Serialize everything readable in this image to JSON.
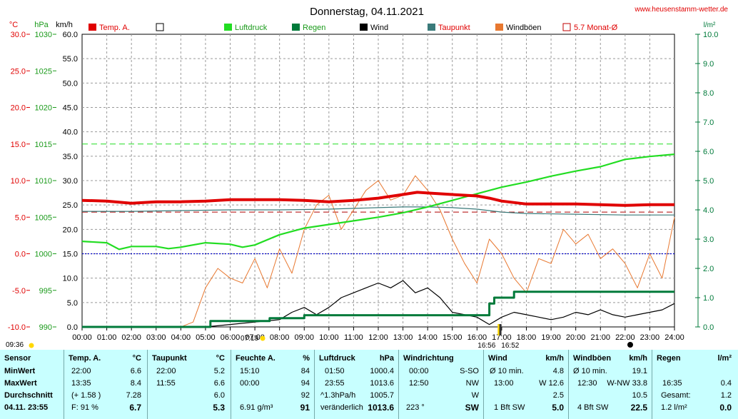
{
  "header": {
    "date_title": "Donnerstag, 04.11.2021",
    "website": "www.heusenstamm-wetter.de"
  },
  "axes": {
    "temp_unit": "°C",
    "pressure_unit": "hPa",
    "wind_unit": "km/h",
    "rain_unit": "l/m²",
    "temp_ticks": [
      "30.0",
      "25.0",
      "20.0",
      "15.0",
      "10.0",
      "5.0",
      "0.0",
      "-5.0",
      "-10.0"
    ],
    "pressure_ticks": [
      "1030",
      "1025",
      "1020",
      "1015",
      "1010",
      "1005",
      "1000",
      "995",
      "990"
    ],
    "wind_ticks": [
      "60.0",
      "55.0",
      "50.0",
      "45.0",
      "40.0",
      "35.0",
      "30.0",
      "25.0",
      "20.0",
      "15.0",
      "10.0",
      "5.0",
      "0.0"
    ],
    "rain_ticks": [
      "10.0",
      "9.0",
      "8.0",
      "7.0",
      "6.0",
      "5.0",
      "4.0",
      "3.0",
      "2.0",
      "1.0",
      "0.0"
    ],
    "time_ticks": [
      "00:00",
      "01:00",
      "02:00",
      "03:00",
      "04:00",
      "05:00",
      "06:00",
      "07:00",
      "08:00",
      "09:00",
      "10:00",
      "11:00",
      "12:00",
      "13:00",
      "14:00",
      "15:00",
      "16:00",
      "17:00",
      "18:00",
      "19:00",
      "20:00",
      "21:00",
      "22:00",
      "23:00",
      "24:00"
    ]
  },
  "legend": [
    {
      "label": "Temp. A.",
      "color": "#e00000",
      "style": "filled"
    },
    {
      "label": "",
      "color": "#000000",
      "style": "outline"
    },
    {
      "label": "Luftdruck",
      "color": "#22dd22",
      "style": "filled"
    },
    {
      "label": "Regen",
      "color": "#007a3a",
      "style": "filled"
    },
    {
      "label": "Wind",
      "color": "#000000",
      "style": "filled"
    },
    {
      "label": "Taupunkt",
      "color": "#3a7a7a",
      "style": "filled"
    },
    {
      "label": "Windböen",
      "color": "#e87830",
      "style": "filled"
    },
    {
      "label": "5.7 Monat-Ø",
      "color": "#c00000",
      "style": "outline"
    }
  ],
  "markers": {
    "sunrise": "07:19",
    "sunset": "16:52",
    "moonrise": "09:36",
    "moonset": "16:56"
  },
  "colors": {
    "temp": "#e00000",
    "pressure": "#22dd22",
    "rain": "#007a3a",
    "wind": "#000000",
    "dewpoint": "#3a7a7a",
    "gust": "#e87830",
    "month_avg": "#b00000",
    "zero_line": "#0000cc",
    "stats_bg": "#c8ffff"
  },
  "chart_data": {
    "type": "line",
    "title": "Donnerstag, 04.11.2021",
    "x_range": [
      "00:00",
      "24:00"
    ],
    "ylim_temp": [
      -10,
      30
    ],
    "ylim_pressure": [
      990,
      1030
    ],
    "ylim_wind": [
      0,
      60
    ],
    "ylim_rain": [
      0,
      10
    ],
    "month_avg_temp": 5.7,
    "series": [
      {
        "name": "Temp. A.",
        "axis": "temp",
        "x": [
          0,
          1,
          2,
          3,
          4,
          5,
          6,
          7,
          8,
          9,
          10,
          11,
          12,
          13,
          13.58,
          14,
          15,
          16,
          16.5,
          17,
          18,
          19,
          20,
          21,
          22,
          23,
          24
        ],
        "values": [
          7.3,
          7.2,
          6.9,
          7.1,
          7.1,
          7.2,
          7.4,
          7.4,
          7.4,
          7.3,
          7.1,
          7.3,
          7.6,
          8.1,
          8.4,
          8.3,
          8.1,
          7.9,
          7.6,
          7.2,
          6.8,
          6.8,
          6.8,
          6.7,
          6.6,
          6.7,
          6.7
        ]
      },
      {
        "name": "Taupunkt",
        "axis": "temp",
        "x": [
          0,
          2,
          4,
          6,
          8,
          10,
          12,
          13,
          14,
          15,
          16,
          17,
          18,
          20,
          22,
          24
        ],
        "values": [
          5.8,
          5.8,
          5.9,
          6.0,
          6.0,
          6.1,
          6.3,
          6.4,
          6.4,
          6.3,
          6.1,
          5.7,
          5.5,
          5.4,
          5.3,
          5.3
        ]
      },
      {
        "name": "Luftdruck",
        "axis": "pressure",
        "x": [
          0,
          1,
          1.5,
          2,
          3,
          3.5,
          4,
          5,
          6,
          6.5,
          7,
          8,
          9,
          10,
          11,
          12,
          13,
          14,
          15,
          16,
          17,
          18,
          19,
          20,
          21,
          22,
          23,
          24
        ],
        "values": [
          1001.7,
          1001.5,
          1000.6,
          1001.0,
          1001.0,
          1000.7,
          1000.9,
          1001.5,
          1001.3,
          1000.9,
          1001.2,
          1002.6,
          1003.5,
          1004.0,
          1004.5,
          1005.0,
          1005.6,
          1006.4,
          1007.3,
          1008.2,
          1009.1,
          1009.8,
          1010.6,
          1011.3,
          1011.9,
          1012.9,
          1013.3,
          1013.6
        ]
      },
      {
        "name": "Regen",
        "axis": "rain",
        "x": [
          0,
          5.2,
          5.2,
          7.6,
          7.6,
          9.0,
          9.0,
          16.5,
          16.5,
          16.7,
          16.7,
          17.5,
          17.5,
          24
        ],
        "values": [
          0,
          0,
          0.2,
          0.2,
          0.3,
          0.3,
          0.4,
          0.4,
          0.8,
          0.8,
          1.0,
          1.0,
          1.2,
          1.2
        ]
      },
      {
        "name": "Wind",
        "axis": "wind",
        "x": [
          0,
          5,
          6,
          7,
          8,
          8.5,
          9,
          9.5,
          10,
          10.5,
          11,
          11.5,
          12,
          12.5,
          13,
          13.5,
          14,
          14.5,
          15,
          15.5,
          16,
          16.5,
          17,
          17.5,
          18,
          18.5,
          19,
          19.5,
          20,
          20.5,
          21,
          21.5,
          22,
          22.5,
          23,
          23.5,
          24
        ],
        "values": [
          0,
          0,
          0.5,
          1,
          1.5,
          3,
          4,
          2.5,
          4,
          6,
          7,
          8,
          9,
          8,
          9.5,
          7,
          8,
          6,
          3,
          2.5,
          2,
          0.5,
          2,
          3,
          2.5,
          2,
          1.5,
          2,
          3,
          2.5,
          3.5,
          2.5,
          2,
          2.5,
          3,
          3.5,
          4.8
        ]
      },
      {
        "name": "Windböen",
        "axis": "wind",
        "x": [
          0,
          4,
          4.5,
          5,
          5.5,
          6,
          6.5,
          7,
          7.5,
          8,
          8.5,
          9,
          9.5,
          10,
          10.5,
          11,
          11.5,
          12,
          12.5,
          13,
          13.5,
          14,
          14.5,
          15,
          15.5,
          16,
          16.5,
          17,
          17.5,
          18,
          18.5,
          19,
          19.5,
          20,
          20.5,
          21,
          21.5,
          22,
          22.5,
          23,
          23.5,
          24
        ],
        "values": [
          0,
          0,
          1,
          8,
          12,
          10,
          9,
          14,
          8,
          16,
          11,
          20,
          25,
          27,
          20,
          24,
          28,
          30,
          26,
          27,
          31,
          28,
          24,
          18,
          13,
          9,
          18,
          15,
          10,
          7,
          14,
          13,
          20,
          17,
          19,
          14,
          16,
          13,
          8,
          15,
          10,
          22.5
        ]
      }
    ]
  },
  "stats": {
    "sensor": {
      "header": "Sensor",
      "min": "MinWert",
      "max": "MaxWert",
      "avg": "Durchschnitt",
      "now": "04.11. 23:55"
    },
    "temp": {
      "header": "Temp. A.",
      "unit": "°C",
      "min_t": "22:00",
      "min_v": "6.6",
      "max_t": "13:35",
      "max_v": "8.4",
      "avg_note": "(+ 1.58 )",
      "avg_v": "7.28",
      "now_note": "F: 91 %",
      "now_v": "6.7"
    },
    "dew": {
      "header": "Taupunkt",
      "unit": "°C",
      "min_t": "22:00",
      "min_v": "5.2",
      "max_t": "11:55",
      "max_v": "6.6",
      "avg_v": "6.0",
      "now_v": "5.3"
    },
    "hum": {
      "header": "Feuchte A.",
      "unit": "%",
      "min_t": "15:10",
      "min_v": "84",
      "max_t": "00:00",
      "max_v": "94",
      "avg_v": "92",
      "now_note": "6.91 g/m³",
      "now_v": "91"
    },
    "press": {
      "header": "Luftdruck",
      "unit": "hPa",
      "min_t": "01:50",
      "min_v": "1000.4",
      "max_t": "23:55",
      "max_v": "1013.6",
      "avg_note": "^1.3hPa/h",
      "avg_v": "1005.7",
      "now_note": "veränderlich",
      "now_v": "1013.6"
    },
    "dir": {
      "header": "Windrichtung",
      "min_t": "00:00",
      "min_v": "S-SO",
      "max_t": "12:50",
      "max_v": "NW",
      "avg_v": "W",
      "now_note": "223 °",
      "now_v": "SW"
    },
    "wind": {
      "header": "Wind",
      "unit": "km/h",
      "min_t": "Ø 10 min.",
      "min_v": "4.8",
      "max_t": "13:00",
      "max_v": "W 12.6",
      "avg_v": "2.5",
      "now_note": "1 Bft SW",
      "now_v": "5.0"
    },
    "gust": {
      "header": "Windböen",
      "unit": "km/h",
      "min_t": "Ø 10 min.",
      "min_v": "19.1",
      "max_t": "12:30",
      "max_v": "W-NW 33.8",
      "avg_v": "10.5",
      "now_note": "4 Bft SW",
      "now_v": "22.5"
    },
    "rain": {
      "header": "Regen",
      "unit": "l/m²",
      "max_t": "16:35",
      "max_v": "0.4",
      "avg_note": "Gesamt:",
      "avg_v": "1.2",
      "now_note": "1.2 l/m²",
      "now_v": "0.0"
    }
  }
}
